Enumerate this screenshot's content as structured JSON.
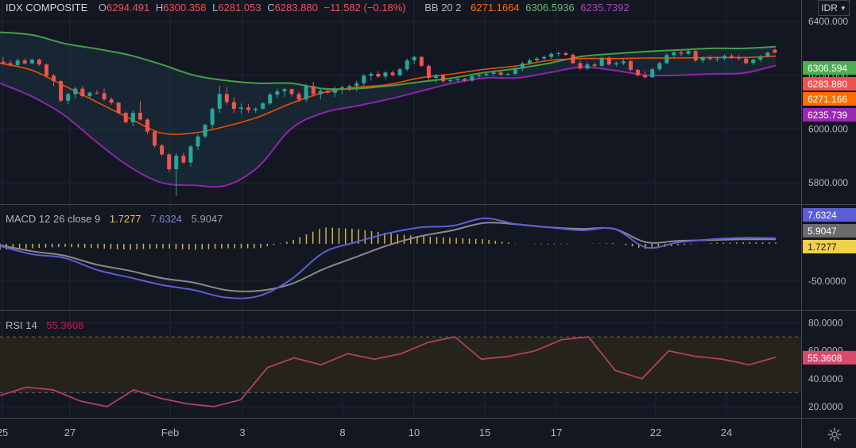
{
  "main": {
    "symbol": "IDX COMPOSITE",
    "open_label": "O",
    "open": "6294.491",
    "high_label": "H",
    "high": "6300.358",
    "low_label": "L",
    "low": "6281.053",
    "close_label": "C",
    "close": "6283.880",
    "change": "−11.582 (−0.18%)",
    "bb_label": "BB 20 2",
    "bb_basis": "6271.1664",
    "bb_upper": "6306.5936",
    "bb_lower": "6235.7392"
  },
  "macd": {
    "label": "MACD 12 26 close 9",
    "hist": "1.7277",
    "macd": "7.6324",
    "signal": "5.9047"
  },
  "rsi": {
    "label": "RSI 14",
    "value": "55.3608"
  },
  "currency": {
    "label": "IDR"
  },
  "colors": {
    "up": "#26a69a",
    "down": "#ef5350",
    "bb_upper": "#43a047",
    "bb_basis": "#e65100",
    "bb_lower": "#8e24aa",
    "macd": "#5b5fd6",
    "signal": "#8a8a8a",
    "hist": "#e8c547",
    "rsi": "#b0415f",
    "rsi_band": "#2e2a1a",
    "tag_close": "#ef5350"
  },
  "chart_data": [
    {
      "type": "candlestick",
      "title": "IDX COMPOSITE",
      "y_ticks": [
        "6400.000",
        "6200.000",
        "6000.000",
        "5800.000"
      ],
      "y_tick_values": [
        6400,
        6200,
        6000,
        5800
      ],
      "ylim": [
        5720,
        6480
      ],
      "x_ticks": [
        "25",
        "27",
        "Feb",
        "3",
        "8",
        "10",
        "15",
        "17",
        "22",
        "24"
      ],
      "price_tags": [
        "6306.594",
        "6283.880",
        "6271.166",
        "6235.739"
      ],
      "price_tag_values": [
        6306.594,
        6283.88,
        6271.166,
        6235.739
      ],
      "candles": [
        [
          6250,
          6268,
          6238,
          6245
        ],
        [
          6245,
          6256,
          6232,
          6238
        ],
        [
          6238,
          6262,
          6232,
          6255
        ],
        [
          6255,
          6262,
          6240,
          6244
        ],
        [
          6244,
          6262,
          6240,
          6258
        ],
        [
          6258,
          6262,
          6235,
          6240
        ],
        [
          6240,
          6244,
          6190,
          6198
        ],
        [
          6198,
          6205,
          6160,
          6178
        ],
        [
          6178,
          6182,
          6100,
          6105
        ],
        [
          6105,
          6135,
          6092,
          6130
        ],
        [
          6130,
          6158,
          6115,
          6150
        ],
        [
          6150,
          6160,
          6118,
          6122
        ],
        [
          6122,
          6140,
          6115,
          6135
        ],
        [
          6135,
          6145,
          6128,
          6133
        ],
        [
          6133,
          6150,
          6105,
          6110
        ],
        [
          6110,
          6118,
          6090,
          6098
        ],
        [
          6098,
          6100,
          6055,
          6060
        ],
        [
          6060,
          6065,
          6020,
          6025
        ],
        [
          6025,
          6070,
          6010,
          6060
        ],
        [
          6060,
          6105,
          6030,
          6035
        ],
        [
          6035,
          6040,
          5980,
          5990
        ],
        [
          5990,
          5995,
          5930,
          5938
        ],
        [
          5938,
          5945,
          5900,
          5905
        ],
        [
          5905,
          5910,
          5840,
          5850
        ],
        [
          5850,
          5910,
          5750,
          5900
        ],
        [
          5900,
          5912,
          5870,
          5875
        ],
        [
          5875,
          5940,
          5860,
          5935
        ],
        [
          5935,
          5980,
          5920,
          5972
        ],
        [
          5972,
          6020,
          5965,
          6015
        ],
        [
          6015,
          6080,
          6000,
          6075
        ],
        [
          6075,
          6160,
          6060,
          6130
        ],
        [
          6130,
          6155,
          6090,
          6100
        ],
        [
          6100,
          6118,
          6060,
          6075
        ],
        [
          6075,
          6095,
          6055,
          6080
        ],
        [
          6080,
          6092,
          6060,
          6070
        ],
        [
          6070,
          6080,
          6060,
          6075
        ],
        [
          6075,
          6100,
          6072,
          6095
        ],
        [
          6095,
          6135,
          6090,
          6128
        ],
        [
          6128,
          6150,
          6115,
          6140
        ],
        [
          6140,
          6152,
          6118,
          6148
        ],
        [
          6148,
          6150,
          6120,
          6130
        ],
        [
          6130,
          6138,
          6100,
          6110
        ],
        [
          6110,
          6168,
          6100,
          6160
        ],
        [
          6160,
          6175,
          6120,
          6130
        ],
        [
          6130,
          6150,
          6110,
          6142
        ],
        [
          6142,
          6150,
          6130,
          6135
        ],
        [
          6135,
          6158,
          6120,
          6148
        ],
        [
          6148,
          6160,
          6130,
          6155
        ],
        [
          6155,
          6165,
          6140,
          6160
        ],
        [
          6160,
          6180,
          6140,
          6170
        ],
        [
          6170,
          6205,
          6160,
          6198
        ],
        [
          6198,
          6212,
          6180,
          6205
        ],
        [
          6205,
          6215,
          6190,
          6195
        ],
        [
          6195,
          6215,
          6185,
          6210
        ],
        [
          6210,
          6218,
          6195,
          6200
        ],
        [
          6200,
          6228,
          6195,
          6222
        ],
        [
          6222,
          6262,
          6215,
          6255
        ],
        [
          6255,
          6272,
          6240,
          6268
        ],
        [
          6268,
          6272,
          6230,
          6235
        ],
        [
          6235,
          6240,
          6180,
          6190
        ],
        [
          6190,
          6205,
          6172,
          6200
        ],
        [
          6200,
          6205,
          6170,
          6178
        ],
        [
          6178,
          6190,
          6172,
          6182
        ],
        [
          6182,
          6192,
          6175,
          6186
        ],
        [
          6186,
          6190,
          6175,
          6180
        ],
        [
          6180,
          6200,
          6175,
          6196
        ],
        [
          6196,
          6208,
          6186,
          6200
        ],
        [
          6200,
          6212,
          6195,
          6205
        ],
        [
          6205,
          6218,
          6198,
          6210
        ],
        [
          6210,
          6218,
          6198,
          6202
        ],
        [
          6202,
          6210,
          6198,
          6205
        ],
        [
          6205,
          6230,
          6200,
          6224
        ],
        [
          6224,
          6250,
          6215,
          6244
        ],
        [
          6244,
          6262,
          6238,
          6255
        ],
        [
          6255,
          6268,
          6245,
          6262
        ],
        [
          6262,
          6275,
          6252,
          6268
        ],
        [
          6268,
          6285,
          6260,
          6280
        ],
        [
          6280,
          6288,
          6270,
          6282
        ],
        [
          6282,
          6288,
          6272,
          6276
        ],
        [
          6276,
          6282,
          6240,
          6245
        ],
        [
          6245,
          6255,
          6220,
          6225
        ],
        [
          6225,
          6248,
          6220,
          6240
        ],
        [
          6240,
          6248,
          6225,
          6235
        ],
        [
          6235,
          6270,
          6230,
          6265
        ],
        [
          6265,
          6270,
          6235,
          6240
        ],
        [
          6240,
          6252,
          6232,
          6245
        ],
        [
          6245,
          6260,
          6238,
          6252
        ],
        [
          6252,
          6258,
          6215,
          6220
        ],
        [
          6220,
          6225,
          6195,
          6200
        ],
        [
          6200,
          6215,
          6188,
          6192
        ],
        [
          6192,
          6228,
          6190,
          6222
        ],
        [
          6222,
          6250,
          6215,
          6245
        ],
        [
          6245,
          6282,
          6240,
          6275
        ],
        [
          6275,
          6290,
          6265,
          6285
        ],
        [
          6285,
          6292,
          6270,
          6280
        ],
        [
          6280,
          6295,
          6275,
          6290
        ],
        [
          6290,
          6295,
          6250,
          6255
        ],
        [
          6255,
          6270,
          6245,
          6265
        ],
        [
          6265,
          6275,
          6255,
          6260
        ],
        [
          6260,
          6270,
          6250,
          6262
        ],
        [
          6262,
          6278,
          6255,
          6272
        ],
        [
          6272,
          6280,
          6260,
          6268
        ],
        [
          6268,
          6275,
          6255,
          6262
        ],
        [
          6262,
          6268,
          6240,
          6245
        ],
        [
          6245,
          6262,
          6238,
          6258
        ],
        [
          6258,
          6275,
          6250,
          6270
        ],
        [
          6270,
          6288,
          6265,
          6284
        ],
        [
          6294.491,
          6300.358,
          6281.053,
          6283.88
        ]
      ],
      "bb_upper": [
        6360,
        6350,
        6318,
        6298,
        6275,
        6240,
        6200,
        6180,
        6170,
        6170,
        6150,
        6150,
        6160,
        6175,
        6190,
        6210,
        6225,
        6245,
        6270,
        6280,
        6288,
        6294,
        6300,
        6300,
        6306
      ],
      "bb_basis": [
        6245,
        6218,
        6160,
        6100,
        6040,
        5985,
        5985,
        6010,
        6045,
        6095,
        6135,
        6155,
        6165,
        6190,
        6205,
        6222,
        6235,
        6255,
        6262,
        6262,
        6264,
        6264,
        6266,
        6266,
        6271
      ],
      "bb_lower": [
        6170,
        6120,
        6050,
        5950,
        5860,
        5800,
        5790,
        5790,
        5860,
        6000,
        6060,
        6085,
        6110,
        6140,
        6170,
        6190,
        6190,
        6210,
        6230,
        6218,
        6200,
        6200,
        6205,
        6208,
        6236
      ]
    },
    {
      "type": "line",
      "title": "MACD 12 26 close 9",
      "y_ticks": [
        "-50.0000"
      ],
      "y_tick_values": [
        -50
      ],
      "ylim": [
        -82,
        52
      ],
      "price_tags": [
        "7.6324",
        "5.9047",
        "1.7277"
      ],
      "price_tag_values": [
        7.6324,
        5.9047,
        1.7277
      ],
      "series": [
        {
          "name": "MACD",
          "values": [
            -3,
            -14,
            -19,
            -35,
            -45,
            -55,
            -62,
            -72,
            -70,
            -48,
            -12,
            2,
            14,
            22,
            24,
            34,
            26,
            22,
            18,
            20,
            -5,
            2,
            6,
            8,
            7.6324
          ]
        },
        {
          "name": "Signal",
          "values": [
            -2,
            -10,
            -16,
            -28,
            -36,
            -46,
            -52,
            -62,
            -63,
            -54,
            -34,
            -18,
            -2,
            10,
            18,
            28,
            26,
            22,
            20,
            20,
            2,
            4,
            5,
            6,
            5.9047
          ]
        },
        {
          "name": "Histogram",
          "values": [
            -8,
            -6,
            -4,
            -6,
            -8,
            -6,
            -8,
            -6,
            -6,
            4,
            22,
            20,
            14,
            10,
            8,
            6,
            0,
            -1,
            0,
            1,
            -7,
            -2,
            1,
            2,
            1.7277
          ]
        }
      ]
    },
    {
      "type": "line",
      "title": "RSI 14",
      "y_ticks": [
        "80.0000",
        "60.0000",
        "40.0000",
        "20.0000"
      ],
      "y_tick_values": [
        80,
        60,
        40,
        20
      ],
      "ylim": [
        12,
        86
      ],
      "band": [
        30,
        70
      ],
      "price_tags": [
        "55.3608"
      ],
      "price_tag_values": [
        55.3608
      ],
      "series": [
        {
          "name": "RSI",
          "values": [
            28,
            34,
            32,
            24,
            20,
            32,
            26,
            22,
            20,
            25,
            48,
            55,
            50,
            58,
            54,
            58,
            66,
            70,
            54,
            56,
            60,
            68,
            70,
            46,
            40,
            60,
            56,
            54,
            50,
            55.3608
          ]
        }
      ]
    }
  ]
}
